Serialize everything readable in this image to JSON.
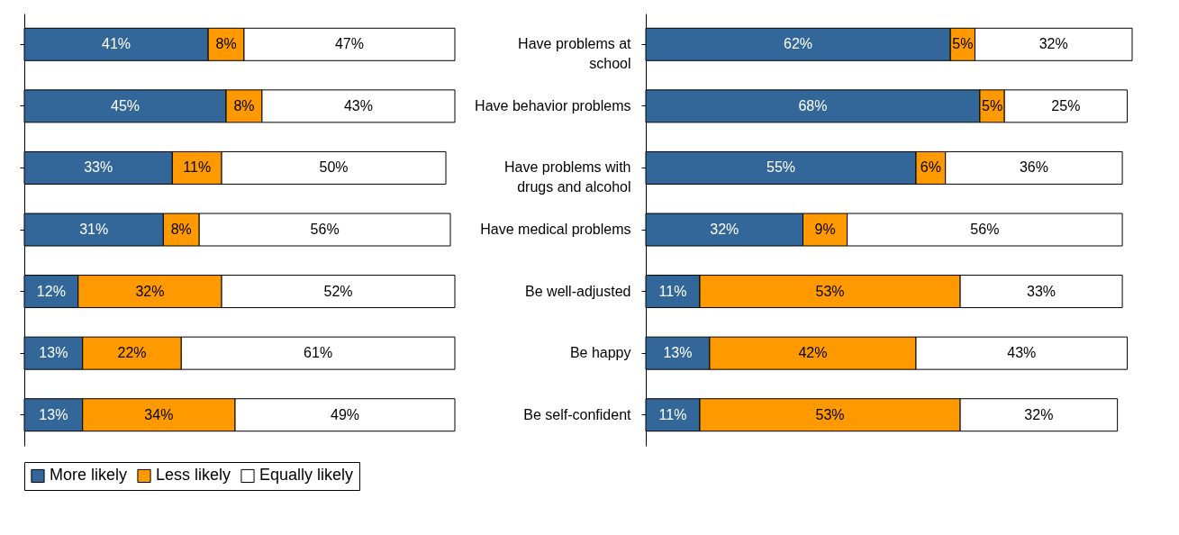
{
  "chart_data": [
    {
      "type": "bar",
      "orientation": "horizontal",
      "stacked": true,
      "legend": "bottom",
      "categories": [
        null,
        null,
        null,
        null,
        null,
        null,
        null
      ],
      "series": [
        {
          "name": "More likely",
          "color": "#336699",
          "values": [
            41,
            45,
            33,
            31,
            12,
            13,
            13
          ],
          "value_labels": [
            "41%",
            "45%",
            "33%",
            "31%",
            "12%",
            "13%",
            "13%"
          ]
        },
        {
          "name": "Less likely",
          "color": "#ff9900",
          "values": [
            8,
            8,
            11,
            8,
            32,
            22,
            34
          ],
          "value_labels": [
            "8%",
            "8%",
            "11%",
            "8%",
            "32%",
            "22%",
            "34%"
          ]
        },
        {
          "name": "Equally likely",
          "color": "#ffffff",
          "values": [
            47,
            43,
            50,
            56,
            52,
            61,
            49
          ],
          "value_labels": [
            "47%",
            "43%",
            "50%",
            "56%",
            "52%",
            "61%",
            "49%"
          ]
        }
      ]
    },
    {
      "type": "bar",
      "orientation": "horizontal",
      "stacked": true,
      "legend": "bottom",
      "categories": [
        "Have problems at school",
        "Have behavior problems",
        "Have problems with drugs and alcohol",
        "Have medical problems",
        "Be well-adjusted",
        "Be happy",
        "Be self-confident"
      ],
      "series": [
        {
          "name": "More likely",
          "color": "#336699",
          "values": [
            62,
            68,
            55,
            32,
            11,
            13,
            11
          ],
          "value_labels": [
            "62%",
            "68%",
            "55%",
            "32%",
            "11%",
            "13%",
            "11%"
          ]
        },
        {
          "name": "Less likely",
          "color": "#ff9900",
          "values": [
            5,
            5,
            6,
            9,
            53,
            42,
            53
          ],
          "value_labels": [
            "5%",
            "5%",
            "6%",
            "9%",
            "53%",
            "42%",
            "53%"
          ]
        },
        {
          "name": "Equally likely",
          "color": "#ffffff",
          "values": [
            32,
            25,
            36,
            56,
            33,
            43,
            32
          ],
          "value_labels": [
            "32%",
            "25%",
            "36%",
            "56%",
            "33%",
            "43%",
            "32%"
          ]
        }
      ]
    }
  ]
}
